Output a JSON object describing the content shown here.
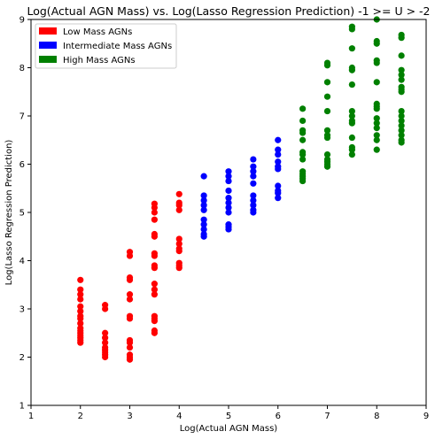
{
  "chart_data": {
    "type": "scatter",
    "title": "Log(Actual AGN Mass) vs. Log(Lasso Regression Prediction) -1 >= U > -2",
    "xlabel": "Log(Actual AGN Mass)",
    "ylabel": "Log(Lasso Regression Prediction)",
    "xlim": [
      1,
      9
    ],
    "ylim": [
      1,
      9
    ],
    "xticks": [
      "1",
      "2",
      "3",
      "4",
      "5",
      "6",
      "7",
      "8",
      "9"
    ],
    "yticks": [
      "1",
      "2",
      "3",
      "4",
      "5",
      "6",
      "7",
      "8",
      "9"
    ],
    "grid": false,
    "legend_position": "top-left",
    "series": [
      {
        "name": "Low Mass AGNs",
        "color": "#ff0000",
        "points": [
          [
            2.0,
            3.6
          ],
          [
            2.0,
            3.4
          ],
          [
            2.0,
            3.3
          ],
          [
            2.0,
            3.2
          ],
          [
            2.0,
            3.05
          ],
          [
            2.0,
            2.95
          ],
          [
            2.0,
            2.85
          ],
          [
            2.0,
            2.8
          ],
          [
            2.0,
            2.7
          ],
          [
            2.0,
            2.6
          ],
          [
            2.0,
            2.55
          ],
          [
            2.0,
            2.5
          ],
          [
            2.0,
            2.45
          ],
          [
            2.0,
            2.4
          ],
          [
            2.0,
            2.35
          ],
          [
            2.0,
            2.3
          ],
          [
            2.5,
            3.08
          ],
          [
            2.5,
            3.0
          ],
          [
            2.5,
            2.5
          ],
          [
            2.5,
            2.4
          ],
          [
            2.5,
            2.3
          ],
          [
            2.5,
            2.2
          ],
          [
            2.5,
            2.15
          ],
          [
            2.5,
            2.1
          ],
          [
            2.5,
            2.05
          ],
          [
            2.5,
            2.0
          ],
          [
            3.0,
            4.18
          ],
          [
            3.0,
            4.1
          ],
          [
            3.0,
            3.65
          ],
          [
            3.0,
            3.6
          ],
          [
            3.0,
            3.3
          ],
          [
            3.0,
            3.2
          ],
          [
            3.0,
            2.85
          ],
          [
            3.0,
            2.8
          ],
          [
            3.0,
            2.35
          ],
          [
            3.0,
            2.3
          ],
          [
            3.0,
            2.2
          ],
          [
            3.0,
            2.05
          ],
          [
            3.0,
            2.0
          ],
          [
            3.0,
            1.95
          ],
          [
            3.5,
            5.18
          ],
          [
            3.5,
            5.1
          ],
          [
            3.5,
            5.0
          ],
          [
            3.5,
            4.85
          ],
          [
            3.5,
            4.55
          ],
          [
            3.5,
            4.5
          ],
          [
            3.5,
            4.15
          ],
          [
            3.5,
            4.1
          ],
          [
            3.5,
            3.9
          ],
          [
            3.5,
            3.85
          ],
          [
            3.5,
            3.52
          ],
          [
            3.5,
            3.4
          ],
          [
            3.5,
            3.3
          ],
          [
            3.5,
            2.85
          ],
          [
            3.5,
            2.8
          ],
          [
            3.5,
            2.75
          ],
          [
            3.5,
            2.55
          ],
          [
            3.5,
            2.5
          ],
          [
            4.0,
            5.38
          ],
          [
            4.0,
            5.2
          ],
          [
            4.0,
            5.15
          ],
          [
            4.0,
            5.05
          ],
          [
            4.0,
            4.45
          ],
          [
            4.0,
            4.35
          ],
          [
            4.0,
            4.25
          ],
          [
            4.0,
            4.2
          ],
          [
            4.0,
            3.95
          ],
          [
            4.0,
            3.9
          ],
          [
            4.0,
            3.85
          ]
        ]
      },
      {
        "name": "Intermediate Mass AGNs",
        "color": "#0000ff",
        "points": [
          [
            4.5,
            5.75
          ],
          [
            4.5,
            5.35
          ],
          [
            4.5,
            5.25
          ],
          [
            4.5,
            5.15
          ],
          [
            4.5,
            5.05
          ],
          [
            4.5,
            4.85
          ],
          [
            4.5,
            4.75
          ],
          [
            4.5,
            4.65
          ],
          [
            4.5,
            4.55
          ],
          [
            4.5,
            4.5
          ],
          [
            5.0,
            5.85
          ],
          [
            5.0,
            5.75
          ],
          [
            5.0,
            5.65
          ],
          [
            5.0,
            5.45
          ],
          [
            5.0,
            5.3
          ],
          [
            5.0,
            5.2
          ],
          [
            5.0,
            5.1
          ],
          [
            5.0,
            5.0
          ],
          [
            5.0,
            4.75
          ],
          [
            5.0,
            4.7
          ],
          [
            5.0,
            4.65
          ],
          [
            5.5,
            6.1
          ],
          [
            5.5,
            5.95
          ],
          [
            5.5,
            5.85
          ],
          [
            5.5,
            5.75
          ],
          [
            5.5,
            5.6
          ],
          [
            5.5,
            5.35
          ],
          [
            5.5,
            5.25
          ],
          [
            5.5,
            5.15
          ],
          [
            5.5,
            5.05
          ],
          [
            5.5,
            5.0
          ],
          [
            6.0,
            6.5
          ],
          [
            6.0,
            6.3
          ],
          [
            6.0,
            6.2
          ],
          [
            6.0,
            6.05
          ],
          [
            6.0,
            5.95
          ],
          [
            6.0,
            5.9
          ],
          [
            6.0,
            5.55
          ],
          [
            6.0,
            5.45
          ],
          [
            6.0,
            5.4
          ],
          [
            6.0,
            5.3
          ]
        ]
      },
      {
        "name": "High Mass AGNs",
        "color": "#008000",
        "points": [
          [
            6.5,
            7.15
          ],
          [
            6.5,
            6.9
          ],
          [
            6.5,
            6.7
          ],
          [
            6.5,
            6.65
          ],
          [
            6.5,
            6.5
          ],
          [
            6.5,
            6.25
          ],
          [
            6.5,
            6.2
          ],
          [
            6.5,
            6.1
          ],
          [
            6.5,
            5.85
          ],
          [
            6.5,
            5.8
          ],
          [
            6.5,
            5.75
          ],
          [
            6.5,
            5.7
          ],
          [
            6.5,
            5.65
          ],
          [
            7.0,
            8.1
          ],
          [
            7.0,
            8.05
          ],
          [
            7.0,
            7.7
          ],
          [
            7.0,
            7.4
          ],
          [
            7.0,
            7.1
          ],
          [
            7.0,
            6.7
          ],
          [
            7.0,
            6.6
          ],
          [
            7.0,
            6.55
          ],
          [
            7.0,
            6.2
          ],
          [
            7.0,
            6.1
          ],
          [
            7.0,
            6.05
          ],
          [
            7.0,
            6.0
          ],
          [
            7.0,
            5.95
          ],
          [
            7.5,
            8.85
          ],
          [
            7.5,
            8.8
          ],
          [
            7.5,
            8.4
          ],
          [
            7.5,
            8.0
          ],
          [
            7.5,
            7.95
          ],
          [
            7.5,
            7.65
          ],
          [
            7.5,
            7.1
          ],
          [
            7.5,
            7.0
          ],
          [
            7.5,
            6.9
          ],
          [
            7.5,
            6.85
          ],
          [
            7.5,
            6.55
          ],
          [
            7.5,
            6.35
          ],
          [
            7.5,
            6.3
          ],
          [
            7.5,
            6.2
          ],
          [
            8.0,
            9.0
          ],
          [
            8.0,
            8.55
          ],
          [
            8.0,
            8.5
          ],
          [
            8.0,
            8.15
          ],
          [
            8.0,
            8.1
          ],
          [
            8.0,
            7.7
          ],
          [
            8.0,
            7.25
          ],
          [
            8.0,
            7.2
          ],
          [
            8.0,
            7.15
          ],
          [
            8.0,
            6.95
          ],
          [
            8.0,
            6.85
          ],
          [
            8.0,
            6.75
          ],
          [
            8.0,
            6.6
          ],
          [
            8.0,
            6.5
          ],
          [
            8.0,
            6.3
          ],
          [
            8.5,
            8.68
          ],
          [
            8.5,
            8.62
          ],
          [
            8.5,
            8.25
          ],
          [
            8.5,
            7.95
          ],
          [
            8.5,
            7.85
          ],
          [
            8.5,
            7.75
          ],
          [
            8.5,
            7.6
          ],
          [
            8.5,
            7.55
          ],
          [
            8.5,
            7.5
          ],
          [
            8.5,
            7.1
          ],
          [
            8.5,
            7.0
          ],
          [
            8.5,
            6.9
          ],
          [
            8.5,
            6.8
          ],
          [
            8.5,
            6.7
          ],
          [
            8.5,
            6.6
          ],
          [
            8.5,
            6.5
          ],
          [
            8.5,
            6.45
          ]
        ]
      }
    ]
  }
}
